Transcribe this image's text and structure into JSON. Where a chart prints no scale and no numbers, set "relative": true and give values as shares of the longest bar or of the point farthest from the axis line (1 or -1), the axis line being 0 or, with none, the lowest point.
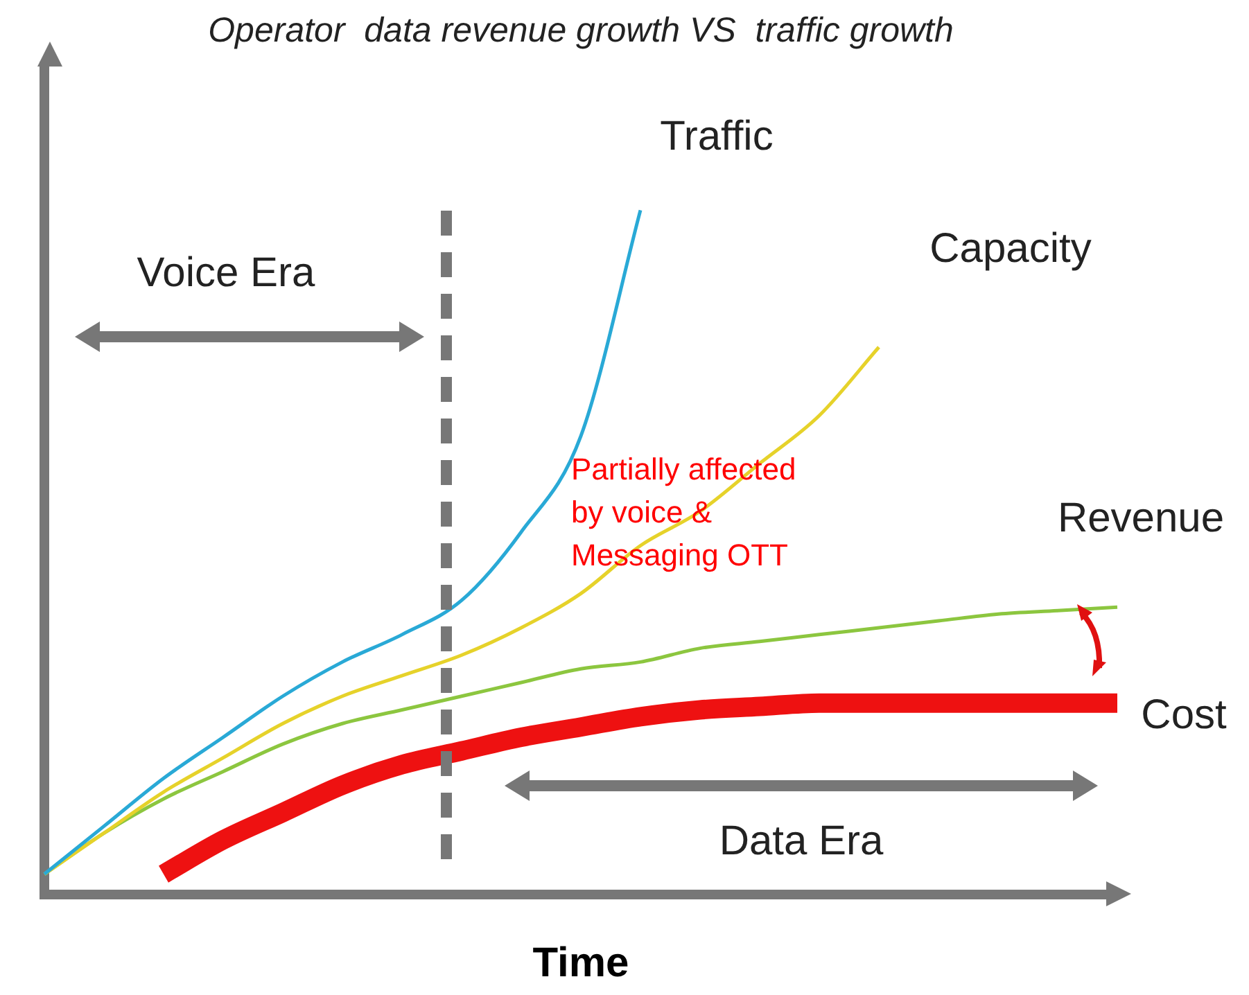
{
  "chart_data": {
    "type": "line",
    "title": "Operator  data revenue growth VS  traffic growth",
    "xlabel": "Time",
    "relative": true,
    "legend": false,
    "grid": false,
    "marker": "none",
    "categories": [
      null,
      null,
      null,
      null,
      null,
      null,
      null,
      null,
      null,
      null,
      null,
      null,
      null,
      null,
      null,
      null,
      null,
      null,
      null
    ],
    "series": [
      {
        "name": "Traffic",
        "color": "#29a9d6",
        "values": [
          0.03,
          0.1,
          0.17,
          0.23,
          0.29,
          0.34,
          0.38,
          0.43,
          0.53,
          0.67,
          1,
          null,
          null,
          null,
          null,
          null,
          null,
          null,
          null
        ]
      },
      {
        "name": "Capacity",
        "color": "#e6d22a",
        "values": [
          0.03,
          0.09,
          0.15,
          0.2,
          0.25,
          0.29,
          0.32,
          0.35,
          0.39,
          0.44,
          0.51,
          0.56,
          0.63,
          0.7,
          0.8,
          null,
          null,
          null,
          null
        ]
      },
      {
        "name": "Revenue",
        "color": "#8cc63f",
        "values": [
          0.03,
          0.09,
          0.14,
          0.18,
          0.22,
          0.25,
          0.27,
          0.29,
          0.31,
          0.33,
          0.34,
          0.36,
          0.37,
          0.38,
          0.39,
          0.4,
          0.41,
          0.415,
          0.42
        ]
      },
      {
        "name": "Cost",
        "color": "#ee1111",
        "values": [
          null,
          null,
          0.03,
          0.08,
          0.12,
          0.16,
          0.19,
          0.21,
          0.23,
          0.245,
          0.26,
          0.27,
          0.275,
          0.28,
          0.28,
          0.28,
          0.28,
          0.28,
          0.28
        ]
      }
    ],
    "annotations": [
      "Voice Era",
      "Partially affected by voice & Messaging OTT",
      "Data Era"
    ]
  }
}
